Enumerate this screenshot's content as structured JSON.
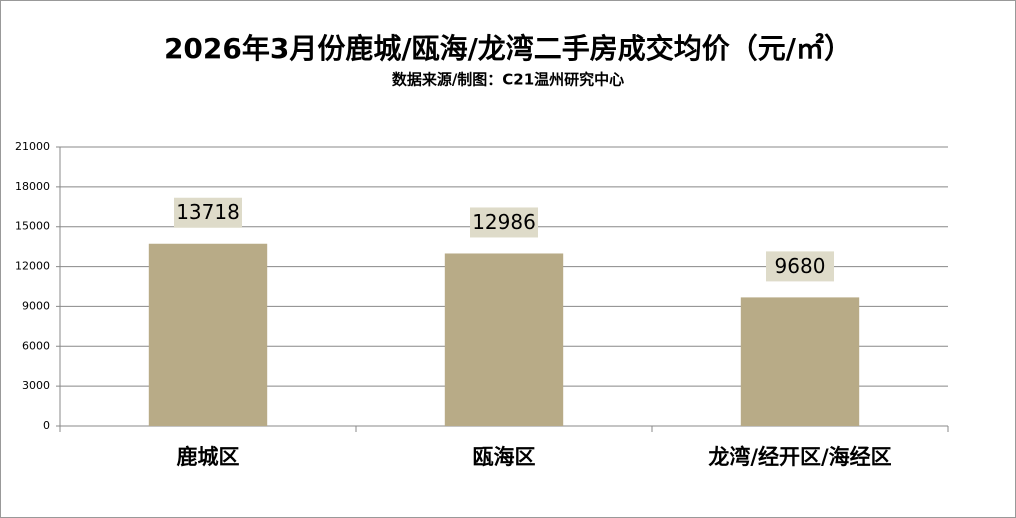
{
  "chart_data": {
    "type": "bar",
    "title": "2026年3月份鹿城/瓯海/龙湾二手房成交均价（元/㎡）",
    "subtitle": "数据来源/制图：C21温州研究中心",
    "categories": [
      "鹿城区",
      "瓯海区",
      "龙湾/经开区/海经区"
    ],
    "values": [
      13718,
      12986,
      9680
    ],
    "color": "#b8ab87",
    "ylim": [
      0,
      21000
    ],
    "yticks": [
      0,
      3000,
      6000,
      9000,
      12000,
      15000,
      18000,
      21000
    ],
    "grid": true
  }
}
